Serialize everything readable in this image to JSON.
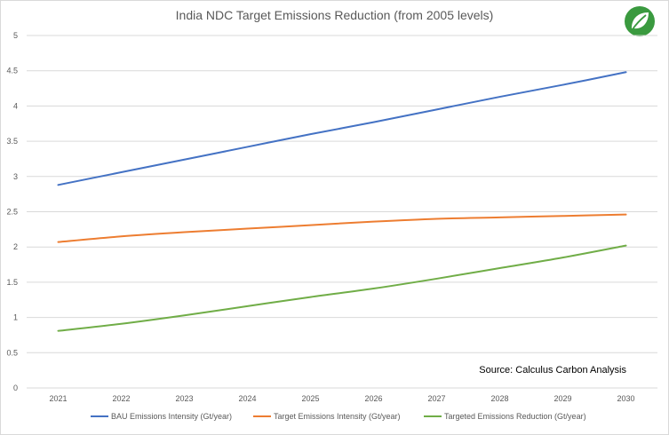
{
  "chart_data": {
    "type": "line",
    "title": "India NDC Target Emissions Reduction (from 2005 levels)",
    "xlabel": "",
    "ylabel": "",
    "categories": [
      "2021",
      "2022",
      "2023",
      "2024",
      "2025",
      "2026",
      "2027",
      "2028",
      "2029",
      "2030"
    ],
    "ylim": [
      0,
      5
    ],
    "yticks": [
      "0",
      "0.5",
      "1",
      "1.5",
      "2",
      "2.5",
      "3",
      "3.5",
      "4",
      "4.5",
      "5"
    ],
    "grid": true,
    "legend": "bottom",
    "annotation": "Source: Calculus Carbon Analysis",
    "series": [
      {
        "name": "BAU Emissions Intensity (Gt/year)",
        "color": "#4472c4",
        "values": [
          2.88,
          3.06,
          3.24,
          3.42,
          3.6,
          3.77,
          3.95,
          4.13,
          4.3,
          4.48
        ]
      },
      {
        "name": "Target Emissions Intensity (Gt/year)",
        "color": "#ed7d31",
        "values": [
          2.07,
          2.15,
          2.21,
          2.26,
          2.31,
          2.36,
          2.4,
          2.42,
          2.44,
          2.46
        ]
      },
      {
        "name": "Targeted Emissions Reduction (Gt/year)",
        "color": "#70ad47",
        "values": [
          0.81,
          0.91,
          1.03,
          1.16,
          1.29,
          1.41,
          1.55,
          1.7,
          1.85,
          2.02
        ]
      }
    ]
  },
  "logo": {
    "icon": "leaf-icon",
    "bg_color": "#3a9a3f"
  }
}
